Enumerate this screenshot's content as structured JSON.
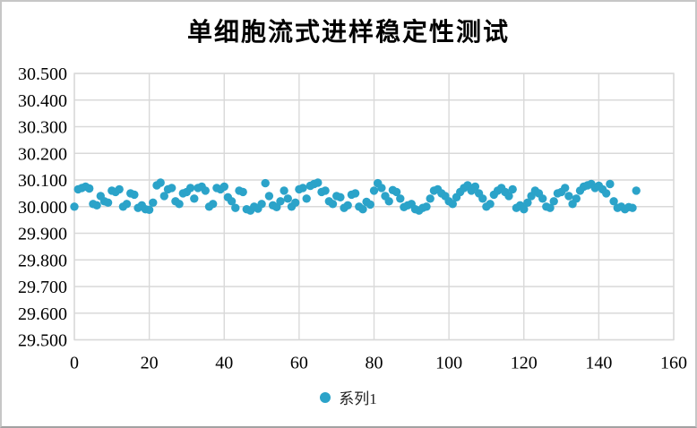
{
  "window": {
    "background": "#ffffff",
    "border_color": "#c6c6c6"
  },
  "chart_data": {
    "type": "scatter",
    "title": "单细胞流式进样稳定性测试",
    "legend_label": "系列1",
    "legend_position": "bottom",
    "marker_color": "#2BA3C9",
    "gridline_color": "#D9D9D9",
    "text_color": "#000000",
    "grid": true,
    "xlim": [
      0,
      160
    ],
    "ylim": [
      29.5,
      30.5
    ],
    "x_ticks": [
      0,
      20,
      40,
      60,
      80,
      100,
      120,
      140,
      160
    ],
    "y_tick_labels": [
      "30.500",
      "30.400",
      "30.300",
      "30.200",
      "30.100",
      "30.000",
      "29.900",
      "29.800",
      "29.700",
      "29.600",
      "29.500"
    ],
    "x_start": 0,
    "x_step": 1,
    "values": [
      30.0,
      30.065,
      30.07,
      30.075,
      30.068,
      30.01,
      30.005,
      30.04,
      30.02,
      30.015,
      30.06,
      30.055,
      30.065,
      30.0,
      30.01,
      30.05,
      30.045,
      29.995,
      30.005,
      29.99,
      29.988,
      30.015,
      30.08,
      30.09,
      30.04,
      30.065,
      30.07,
      30.02,
      30.01,
      30.05,
      30.055,
      30.07,
      30.03,
      30.07,
      30.075,
      30.06,
      30.0,
      30.01,
      30.07,
      30.065,
      30.075,
      30.035,
      30.02,
      29.995,
      30.06,
      30.055,
      29.99,
      29.985,
      30.0,
      29.992,
      30.01,
      30.088,
      30.04,
      30.005,
      29.998,
      30.02,
      30.06,
      30.03,
      30.0,
      30.015,
      30.065,
      30.07,
      30.03,
      30.078,
      30.085,
      30.09,
      30.055,
      30.06,
      30.02,
      30.01,
      30.04,
      30.035,
      29.995,
      30.005,
      30.045,
      30.05,
      30.0,
      29.99,
      30.018,
      30.008,
      30.06,
      30.088,
      30.07,
      30.04,
      30.02,
      30.062,
      30.055,
      30.03,
      29.998,
      30.005,
      30.01,
      29.99,
      29.985,
      29.995,
      30.0,
      30.03,
      30.06,
      30.065,
      30.05,
      30.04,
      30.02,
      30.01,
      30.035,
      30.055,
      30.07,
      30.08,
      30.06,
      30.075,
      30.05,
      30.03,
      30.0,
      30.01,
      30.045,
      30.06,
      30.07,
      30.055,
      30.04,
      30.065,
      29.995,
      30.005,
      29.99,
      30.015,
      30.04,
      30.06,
      30.05,
      30.03,
      30.0,
      29.995,
      30.02,
      30.05,
      30.055,
      30.07,
      30.04,
      30.01,
      30.03,
      30.06,
      30.075,
      30.08,
      30.085,
      30.07,
      30.078,
      30.065,
      30.05,
      30.085,
      30.02,
      29.995,
      30.0,
      29.99,
      29.998,
      29.995,
      30.06
    ]
  }
}
